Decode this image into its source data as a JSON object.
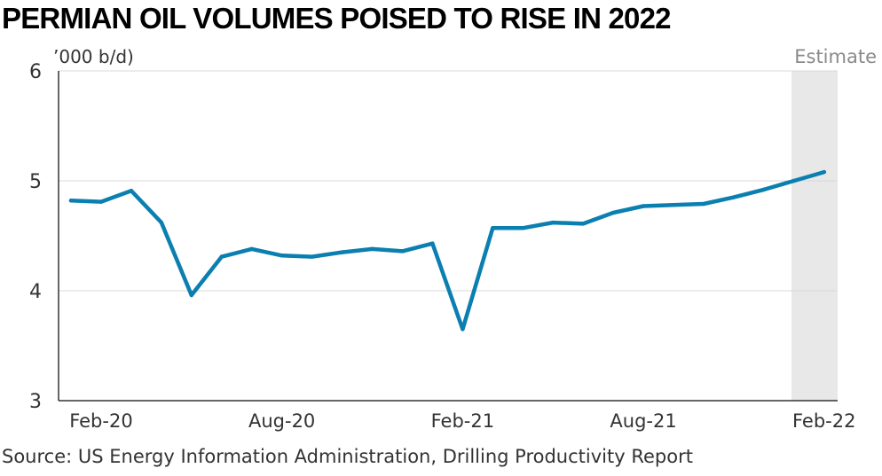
{
  "chart_data": {
    "type": "line",
    "title": "PERMIAN OIL VOLUMES POISED TO RISE IN 2022",
    "ylabel": "('000 b/d)",
    "ylabel_text": "’000 b/d)",
    "ylim": [
      3,
      6
    ],
    "y_ticks": [
      "6",
      "5",
      "4",
      "3"
    ],
    "x_tick_labels": [
      "Feb-20",
      "Aug-20",
      "Feb-21",
      "Aug-21",
      "Feb-22"
    ],
    "estimate_label": "Estimate",
    "grid": true,
    "series": [
      {
        "x": [
          "Jan-20",
          "Feb-20",
          "Mar-20",
          "Apr-20",
          "May-20",
          "Jun-20",
          "Jul-20",
          "Aug-20",
          "Sep-20",
          "Oct-20",
          "Nov-20",
          "Dec-20",
          "Jan-21",
          "Feb-21",
          "Mar-21",
          "Apr-21",
          "May-21",
          "Jun-21",
          "Jul-21",
          "Aug-21",
          "Sep-21",
          "Oct-21",
          "Nov-21",
          "Dec-21",
          "Jan-22",
          "Feb-22"
        ],
        "values": [
          4.82,
          4.81,
          4.91,
          4.62,
          3.96,
          4.31,
          4.38,
          4.32,
          4.31,
          4.35,
          4.38,
          4.36,
          4.43,
          3.65,
          4.57,
          4.57,
          4.62,
          4.61,
          4.71,
          4.77,
          4.78,
          4.79,
          4.85,
          4.92,
          5.0,
          5.08
        ]
      }
    ],
    "source": "Source: US Energy Information Administration, Drilling Productivity Report",
    "colors": {
      "line": "#0a7fb0",
      "estimate_band": "#e8e8e8",
      "grid": "#d9d9d9",
      "axis": "#333333"
    }
  }
}
